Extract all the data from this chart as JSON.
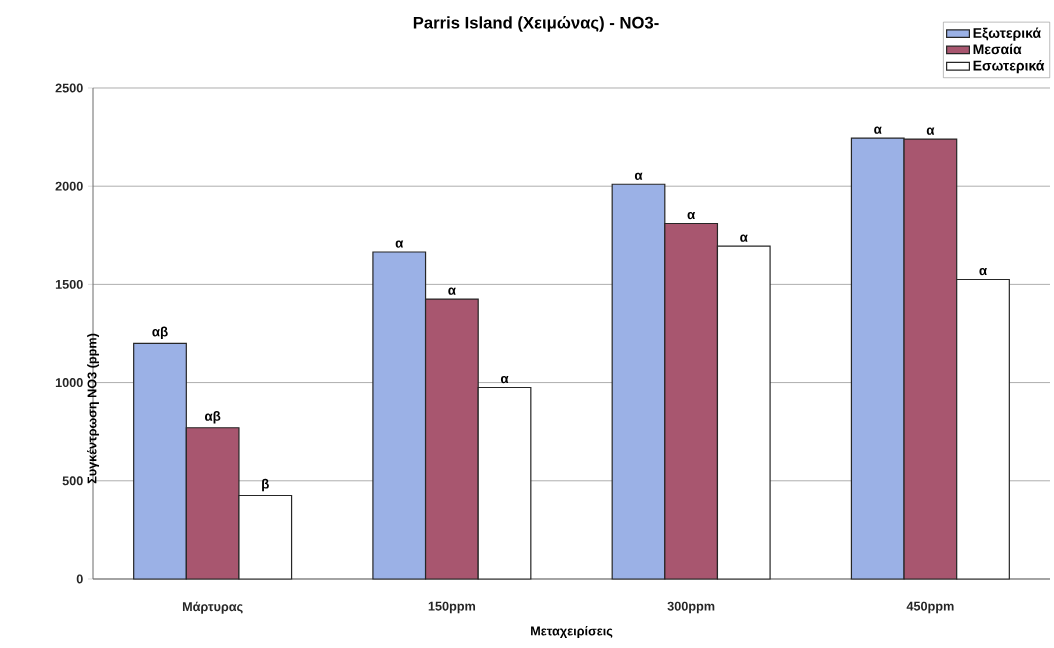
{
  "chart_data": {
    "type": "bar",
    "title": "Parris Island (Χειμώνας) - NO3-",
    "xlabel": "Μεταχειρίσεις",
    "ylabel": "Συγκέντρωση NO3 (ppm)",
    "categories": [
      "Μάρτυρας",
      "150ppm",
      "300ppm",
      "450ppm"
    ],
    "series": [
      {
        "name": "Εξωτερικά",
        "color": "#9bb1e6",
        "values": [
          1200,
          1665,
          2010,
          2245
        ],
        "value_labels": [
          "αβ",
          "α",
          "α",
          "α"
        ]
      },
      {
        "name": "Μεσαία",
        "color": "#a8566f",
        "values": [
          770,
          1425,
          1810,
          2240
        ],
        "value_labels": [
          "αβ",
          "α",
          "α",
          "α"
        ]
      },
      {
        "name": "Εσωτερικά",
        "color": "#ffffff",
        "values": [
          425,
          975,
          1695,
          1525
        ],
        "value_labels": [
          "β",
          "α",
          "α",
          "α"
        ]
      }
    ],
    "ylim": [
      0,
      2500
    ],
    "yticks": [
      0,
      500,
      1000,
      1500,
      2000,
      2500
    ],
    "grid": "y",
    "legend": "top right"
  }
}
